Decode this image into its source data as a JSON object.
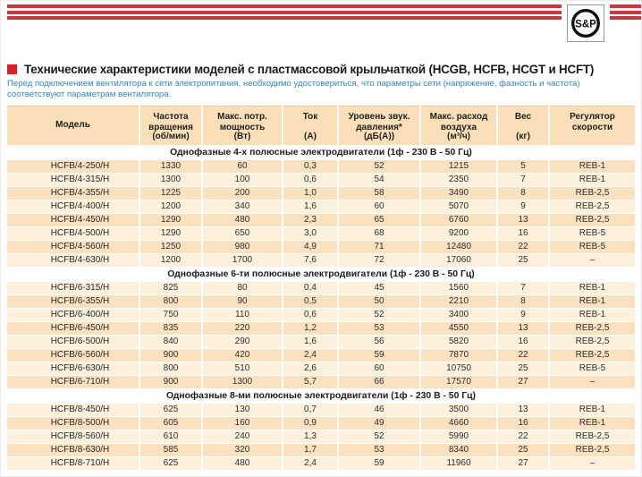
{
  "brand": {
    "logo_text": "S&P"
  },
  "header": {
    "title": "Технические характеристики моделей с пластмассовой крыльчаткой (HCGB, HCFB, HCGT и HCFT)",
    "note": "Перед подключением вентилятора к сети электропитания, необходимо удостовериться, что параметры сети (напряжение, фазность и частота) соответствуют параметрам вентилятора."
  },
  "colors": {
    "stripe_red": "#C43A3F",
    "bullet_red": "#D2232A",
    "note_blue": "#2F86C4",
    "header_bg": "#FADFB9",
    "row_dark": "#FAE2C1",
    "row_light": "#FDF1DE"
  },
  "table": {
    "columns": [
      {
        "key": "model",
        "title": "Модель",
        "unit": ""
      },
      {
        "key": "rpm",
        "title": "Частота\nвращения",
        "unit": "(об/мин)"
      },
      {
        "key": "max_power",
        "title": "Макс. потр.\nмощность",
        "unit": "(Вт)"
      },
      {
        "key": "current",
        "title": "Ток",
        "unit": "(А)"
      },
      {
        "key": "noise",
        "title": "Уровень звук.\nдавления*",
        "unit": "(дБ(А))"
      },
      {
        "key": "airflow",
        "title": "Макс. расход\nвоздуха",
        "unit": "(м³/ч)"
      },
      {
        "key": "weight",
        "title": "Вес",
        "unit": "(кг)"
      },
      {
        "key": "regulator",
        "title": "Регулятор\nскорости",
        "unit": ""
      }
    ],
    "sections": [
      {
        "header": "Однофазные 4-х полюсные электродвигатели (1ф - 230 В - 50 Гц)",
        "start_shade": "dark",
        "rows": [
          [
            "HCFB/4-250/H",
            "1330",
            "60",
            "0,3",
            "52",
            "1215",
            "5",
            "REB-1"
          ],
          [
            "HCFB/4-315/H",
            "1300",
            "100",
            "0,6",
            "54",
            "2350",
            "7",
            "REB-1"
          ],
          [
            "HCFB/4-355/H",
            "1225",
            "200",
            "1,0",
            "58",
            "3490",
            "8",
            "REB-2,5"
          ],
          [
            "HCFB/4-400/H",
            "1200",
            "340",
            "1,6",
            "60",
            "5070",
            "9",
            "REB-2,5"
          ],
          [
            "HCFB/4-450/H",
            "1290",
            "480",
            "2,3",
            "65",
            "6760",
            "13",
            "REB-2,5"
          ],
          [
            "HCFB/4-500/H",
            "1290",
            "650",
            "3,0",
            "68",
            "9200",
            "16",
            "REB-5"
          ],
          [
            "HCFB/4-560/H",
            "1250",
            "980",
            "4,9",
            "71",
            "12480",
            "22",
            "REB-5"
          ],
          [
            "HCFB/4-630/H",
            "1200",
            "1700",
            "7,6",
            "72",
            "17060",
            "25",
            "–"
          ]
        ]
      },
      {
        "header": "Однофазные 6-ти полюсные электродвигатели (1ф - 230 В - 50 Гц)",
        "start_shade": "light",
        "rows": [
          [
            "HCFB/6-315/H",
            "825",
            "80",
            "0,4",
            "45",
            "1560",
            "7",
            "REB-1"
          ],
          [
            "HCFB/6-355/H",
            "800",
            "90",
            "0,5",
            "50",
            "2210",
            "8",
            "REB-1"
          ],
          [
            "HCFB/6-400/H",
            "750",
            "110",
            "0,6",
            "52",
            "3400",
            "9",
            "REB-1"
          ],
          [
            "HCFB/6-450/H",
            "835",
            "220",
            "1,2",
            "53",
            "4550",
            "13",
            "REB-2,5"
          ],
          [
            "HCFB/6-500/H",
            "840",
            "290",
            "1,6",
            "56",
            "5820",
            "16",
            "REB-2,5"
          ],
          [
            "HCFB/6-560/H",
            "900",
            "420",
            "2,4",
            "59",
            "7870",
            "22",
            "REB-2,5"
          ],
          [
            "HCFB/6-630/H",
            "800",
            "510",
            "2,6",
            "60",
            "10750",
            "25",
            "REB-5"
          ],
          [
            "HCFB/6-710/H",
            "900",
            "1300",
            "5,7",
            "66",
            "17570",
            "27",
            "–"
          ]
        ]
      },
      {
        "header": "Однофазные 8-ми полюсные электродвигатели (1ф - 230 В - 50 Гц)",
        "start_shade": "light",
        "rows": [
          [
            "HCFB/8-450/H",
            "625",
            "130",
            "0,7",
            "46",
            "3500",
            "13",
            "REB-1"
          ],
          [
            "HCFB/8-500/H",
            "605",
            "160",
            "0,9",
            "49",
            "4660",
            "16",
            "REB-1"
          ],
          [
            "HCFB/8-560/H",
            "610",
            "240",
            "1,3",
            "52",
            "5990",
            "22",
            "REB-2,5"
          ],
          [
            "HCFB/8-630/H",
            "585",
            "320",
            "1,7",
            "53",
            "8340",
            "25",
            "REB-2,5"
          ],
          [
            "HCFB/8-710/H",
            "625",
            "480",
            "2,4",
            "59",
            "11960",
            "27",
            "–"
          ]
        ]
      }
    ]
  }
}
